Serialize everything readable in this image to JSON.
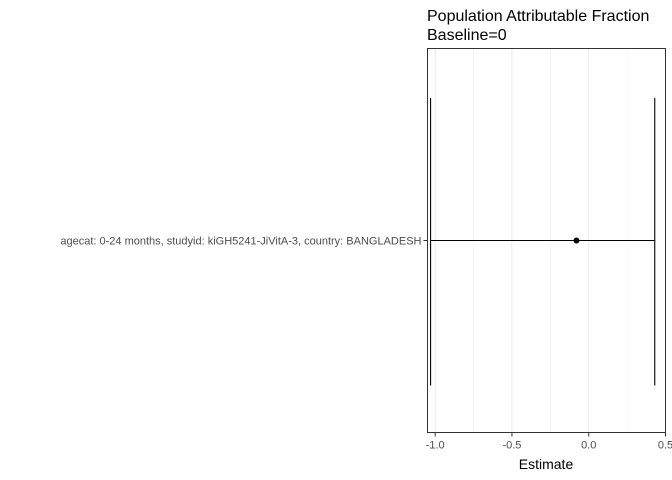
{
  "chart_data": {
    "type": "forest",
    "title_lines": [
      "Population Attributable Fraction",
      "Baseline=0"
    ],
    "xlabel": "Estimate",
    "ylabel": "",
    "xlim": [
      -1.05,
      0.5
    ],
    "x_ticks": [
      -1.0,
      -0.5,
      0.0,
      0.5
    ],
    "x_tick_labels": [
      "-1.0",
      "-0.5",
      "0.0",
      "0.5"
    ],
    "grid": true,
    "categories": [
      "agecat: 0-24 months, studyid: kiGH5241-JiVitA-3, country: BANGLADESH"
    ],
    "points": [
      {
        "category": "agecat: 0-24 months, studyid: kiGH5241-JiVitA-3, country: BANGLADESH",
        "estimate": -0.08,
        "lower": -1.03,
        "upper": 0.43
      }
    ]
  }
}
